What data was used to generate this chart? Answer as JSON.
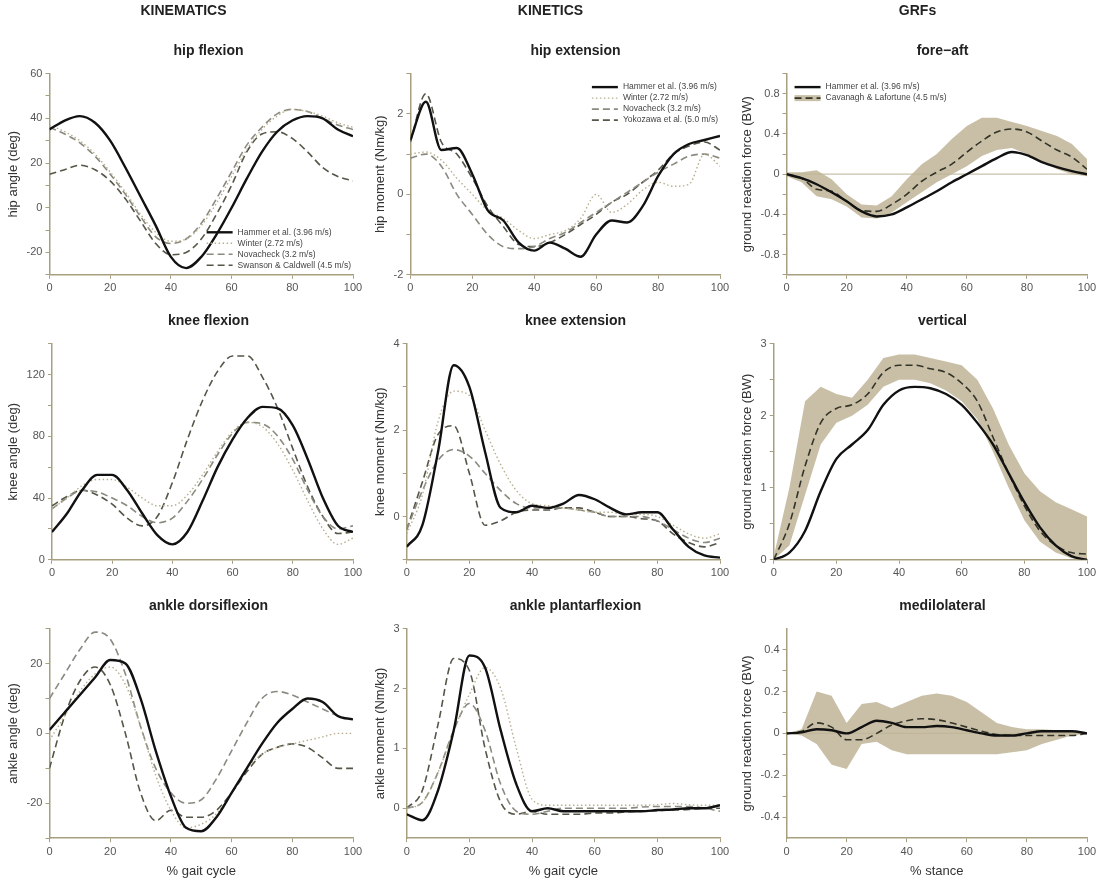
{
  "chart_data": [
    {
      "type": "line",
      "annotations": [
        "KINEMATICS"
      ],
      "title": "hip flexion",
      "ylabel": "hip angle (deg)",
      "legend": "bottom right",
      "x": [
        0,
        5,
        10,
        15,
        20,
        25,
        30,
        35,
        40,
        45,
        50,
        55,
        60,
        65,
        70,
        75,
        80,
        85,
        90,
        95,
        100
      ],
      "xlim": [
        0,
        100
      ],
      "xticks": [
        0,
        20,
        40,
        60,
        80,
        100
      ],
      "ylim": [
        -30,
        60
      ],
      "yticks": [
        {
          "value": -30,
          "label": null
        },
        -20,
        {
          "value": -10,
          "label": null
        },
        0,
        {
          "value": 10,
          "label": null
        },
        20,
        {
          "value": 30,
          "label": null
        },
        40,
        {
          "value": 50,
          "label": null
        },
        60
      ],
      "series": [
        {
          "name": "Hammer et al. (3.96 m/s)",
          "color": "#111111",
          "line_style": "solid",
          "values": [
            35,
            39,
            41,
            38,
            30,
            18,
            5,
            -8,
            -22,
            -27,
            -22,
            -12,
            0,
            13,
            25,
            34,
            39,
            41,
            40,
            35,
            32
          ]
        },
        {
          "name": "Winter (2.72 m/s)",
          "color": "#b8ae8e",
          "line_style": "dotted",
          "values": [
            37,
            34,
            30,
            24,
            16,
            7,
            -3,
            -11,
            -15,
            -14,
            -8,
            2,
            14,
            26,
            35,
            41,
            44,
            43,
            41,
            38,
            36
          ]
        },
        {
          "name": "Novacheck (3.2 m/s)",
          "color": "#8a8a80",
          "line_style": "dashed",
          "values": [
            36,
            33,
            29,
            23,
            15,
            6,
            -4,
            -13,
            -16,
            -14,
            -7,
            4,
            16,
            28,
            36,
            42,
            44,
            43,
            40,
            37,
            35
          ]
        },
        {
          "name": "Swanson & Caldwell (4.5 m/s)",
          "color": "#555548",
          "line_style": "dashed",
          "values": [
            15,
            17,
            19,
            17,
            12,
            4,
            -6,
            -16,
            -21,
            -20,
            -14,
            -3,
            10,
            25,
            33,
            34,
            31,
            25,
            18,
            14,
            12
          ]
        }
      ]
    },
    {
      "type": "line",
      "title": "knee flexion",
      "ylabel": "knee angle (deg)",
      "x": [
        0,
        5,
        10,
        15,
        20,
        25,
        30,
        35,
        40,
        45,
        50,
        55,
        60,
        65,
        70,
        75,
        80,
        85,
        90,
        95,
        100
      ],
      "xlim": [
        0,
        100
      ],
      "xticks": [
        0,
        20,
        40,
        60,
        80,
        100
      ],
      "ylim": [
        0,
        140
      ],
      "yticks": [
        0,
        {
          "value": 20,
          "label": null
        },
        40,
        {
          "value": 60,
          "label": null
        },
        80,
        {
          "value": 100,
          "label": null
        },
        120,
        {
          "value": 140,
          "label": null
        }
      ],
      "series": [
        {
          "color": "#111111",
          "line_style": "solid",
          "values": [
            18,
            30,
            45,
            55,
            55,
            45,
            30,
            16,
            10,
            18,
            38,
            60,
            78,
            92,
            99,
            98,
            87,
            65,
            40,
            22,
            18
          ]
        },
        {
          "color": "#b8ae8e",
          "line_style": "dotted",
          "values": [
            33,
            40,
            48,
            52,
            52,
            47,
            40,
            35,
            35,
            42,
            55,
            70,
            83,
            89,
            86,
            75,
            58,
            38,
            20,
            10,
            14
          ]
        },
        {
          "color": "#8a8a80",
          "line_style": "dashed",
          "values": [
            33,
            40,
            45,
            44,
            40,
            35,
            28,
            24,
            27,
            38,
            52,
            68,
            82,
            89,
            88,
            80,
            65,
            45,
            28,
            20,
            22
          ]
        },
        {
          "color": "#555548",
          "line_style": "dashed",
          "values": [
            35,
            41,
            45,
            42,
            36,
            27,
            22,
            28,
            50,
            78,
            103,
            122,
            132,
            132,
            118,
            98,
            72,
            47,
            28,
            17,
            18
          ]
        }
      ]
    },
    {
      "type": "line",
      "title": "ankle dorsiflexion",
      "xlabel": "% gait cycle",
      "ylabel": "ankle angle (deg)",
      "x": [
        0,
        5,
        10,
        15,
        20,
        25,
        30,
        35,
        40,
        45,
        50,
        55,
        60,
        65,
        70,
        75,
        80,
        85,
        90,
        95,
        100
      ],
      "xlim": [
        0,
        100
      ],
      "xticks": [
        0,
        20,
        40,
        60,
        80,
        100
      ],
      "ylim": [
        -30,
        30
      ],
      "yticks": [
        {
          "value": -30,
          "label": null
        },
        -20,
        {
          "value": -10,
          "label": null
        },
        0,
        {
          "value": 10,
          "label": null
        },
        20,
        {
          "value": 30,
          "label": null
        }
      ],
      "series": [
        {
          "color": "#111111",
          "line_style": "solid",
          "values": [
            1,
            6,
            11,
            16,
            21,
            20,
            10,
            -5,
            -18,
            -27,
            -28,
            -24,
            -17,
            -10,
            -3,
            3,
            7,
            10,
            9,
            5,
            4
          ]
        },
        {
          "color": "#b8ae8e",
          "line_style": "dotted",
          "values": [
            -2,
            5,
            12,
            17,
            19,
            14,
            2,
            -12,
            -22,
            -27,
            -26,
            -23,
            -17,
            -10,
            -6,
            -4,
            -3,
            -2,
            -1,
            0,
            0
          ]
        },
        {
          "color": "#8a8a80",
          "line_style": "dashed",
          "values": [
            10,
            17,
            24,
            29,
            27,
            17,
            2,
            -10,
            -17,
            -20,
            -19,
            -13,
            -5,
            3,
            10,
            12,
            11,
            9,
            7,
            5,
            4
          ]
        },
        {
          "color": "#555548",
          "line_style": "dashed",
          "values": [
            -10,
            5,
            15,
            19,
            14,
            0,
            -17,
            -25,
            -22,
            -24,
            -24,
            -22,
            -17,
            -11,
            -6,
            -4,
            -3,
            -4,
            -7,
            -10,
            -10
          ]
        }
      ]
    },
    {
      "type": "line",
      "annotations": [
        "KINETICS"
      ],
      "title": "hip extension",
      "ylabel": "hip moment (Nm/kg)",
      "legend": "top right",
      "x": [
        0,
        5,
        10,
        15,
        20,
        25,
        30,
        35,
        40,
        45,
        50,
        55,
        60,
        65,
        70,
        75,
        80,
        85,
        90,
        95,
        100
      ],
      "xlim": [
        0,
        100
      ],
      "xticks": [
        0,
        20,
        40,
        60,
        80,
        100
      ],
      "ylim": [
        -2,
        3
      ],
      "yticks": [
        -2,
        {
          "value": -1,
          "label": null
        },
        0,
        {
          "value": 1,
          "label": null
        },
        2,
        {
          "value": 3,
          "label": null
        }
      ],
      "series": [
        {
          "name": "Hammer et al. (3.96 m/s)",
          "color": "#111111",
          "line_style": "solid",
          "values": [
            1.35,
            2.3,
            1.1,
            1.15,
            0.5,
            -0.4,
            -0.65,
            -1.2,
            -1.4,
            -1.2,
            -1.35,
            -1.55,
            -1.0,
            -0.65,
            -0.7,
            -0.3,
            0.45,
            1.0,
            1.25,
            1.35,
            1.45
          ]
        },
        {
          "name": "Winter (2.72 m/s)",
          "color": "#b8ae8e",
          "line_style": "dotted",
          "values": [
            1.0,
            1.05,
            0.85,
            0.4,
            0.0,
            -0.4,
            -0.6,
            -0.9,
            -1.1,
            -1.0,
            -0.9,
            -0.6,
            0.0,
            -0.45,
            -0.25,
            0.1,
            0.3,
            0.2,
            0.25,
            1.0,
            0.7
          ]
        },
        {
          "name": "Novacheck (3.2 m/s)",
          "color": "#8a8a80",
          "line_style": "dashed",
          "values": [
            0.9,
            1.0,
            0.7,
            0.0,
            -0.5,
            -1.0,
            -1.3,
            -1.35,
            -1.3,
            -1.1,
            -0.95,
            -0.7,
            -0.45,
            -0.2,
            0.05,
            0.3,
            0.55,
            0.75,
            0.95,
            1.0,
            0.9
          ]
        },
        {
          "name": "Yokozawa et al. (5.0 m/s)",
          "color": "#555548",
          "line_style": "dashed",
          "values": [
            1.3,
            2.5,
            1.3,
            1.0,
            0.4,
            -0.3,
            -0.8,
            -1.25,
            -1.3,
            -1.2,
            -1.0,
            -0.75,
            -0.5,
            -0.2,
            0.0,
            0.3,
            0.6,
            1.0,
            1.2,
            1.3,
            1.1
          ]
        }
      ]
    },
    {
      "type": "line",
      "title": "knee extension",
      "ylabel": "knee moment (Nm/kg)",
      "x": [
        0,
        5,
        10,
        15,
        20,
        25,
        30,
        35,
        40,
        45,
        50,
        55,
        60,
        65,
        70,
        75,
        80,
        85,
        90,
        95,
        100
      ],
      "xlim": [
        0,
        100
      ],
      "xticks": [
        0,
        20,
        40,
        60,
        80,
        100
      ],
      "ylim": [
        -1,
        4
      ],
      "yticks": [
        {
          "value": -1,
          "label": null
        },
        0,
        {
          "value": 1,
          "label": null
        },
        2,
        {
          "value": 3,
          "label": null
        },
        4
      ],
      "series": [
        {
          "color": "#111111",
          "line_style": "solid",
          "values": [
            -0.7,
            -0.2,
            1.5,
            3.5,
            3.0,
            1.5,
            0.2,
            0.1,
            0.25,
            0.2,
            0.3,
            0.5,
            0.4,
            0.2,
            0.05,
            0.1,
            0.1,
            -0.3,
            -0.7,
            -0.9,
            -0.95
          ]
        },
        {
          "color": "#b8ae8e",
          "line_style": "dotted",
          "values": [
            -0.4,
            0.5,
            2.2,
            2.9,
            2.8,
            2.0,
            1.2,
            0.6,
            0.3,
            0.25,
            0.2,
            0.15,
            0.1,
            0.1,
            0.05,
            0.05,
            0.0,
            -0.2,
            -0.4,
            -0.5,
            -0.4
          ]
        },
        {
          "color": "#8a8a80",
          "line_style": "dashed",
          "values": [
            -0.3,
            0.6,
            1.3,
            1.55,
            1.4,
            1.0,
            0.6,
            0.3,
            0.2,
            0.2,
            0.2,
            0.15,
            0.1,
            0.0,
            0.0,
            0.0,
            -0.1,
            -0.3,
            -0.5,
            -0.6,
            -0.5
          ]
        },
        {
          "color": "#555548",
          "line_style": "dashed",
          "values": [
            -0.3,
            0.8,
            1.9,
            2.1,
            1.0,
            -0.2,
            -0.1,
            0.1,
            0.15,
            0.15,
            0.2,
            0.2,
            0.1,
            0.0,
            0.0,
            -0.05,
            -0.1,
            -0.4,
            -0.6,
            -0.7,
            -0.6
          ]
        }
      ]
    },
    {
      "type": "line",
      "title": "ankle plantarflexion",
      "xlabel": "% gait cycle",
      "ylabel": "ankle moment (Nm/kg)",
      "x": [
        0,
        5,
        10,
        15,
        20,
        25,
        30,
        35,
        40,
        45,
        50,
        55,
        60,
        65,
        70,
        75,
        80,
        85,
        90,
        95,
        100
      ],
      "xlim": [
        0,
        100
      ],
      "xticks": [
        0,
        20,
        40,
        60,
        80,
        100
      ],
      "ylim": [
        -0.5,
        3
      ],
      "yticks": [
        0,
        1,
        2,
        3
      ],
      "series": [
        {
          "color": "#111111",
          "line_style": "solid",
          "values": [
            -0.1,
            -0.2,
            0.3,
            1.3,
            2.55,
            2.35,
            1.3,
            0.4,
            -0.05,
            0.0,
            -0.05,
            -0.05,
            -0.05,
            -0.05,
            -0.05,
            -0.05,
            -0.03,
            -0.02,
            0.0,
            0.0,
            0.05
          ]
        },
        {
          "color": "#b8ae8e",
          "line_style": "dotted",
          "values": [
            0.0,
            0.1,
            0.6,
            1.3,
            1.9,
            2.35,
            2.0,
            1.0,
            0.15,
            0.05,
            0.05,
            0.05,
            0.05,
            0.05,
            0.05,
            0.05,
            0.06,
            0.08,
            0.06,
            0.05,
            0.05
          ]
        },
        {
          "color": "#8a8a80",
          "line_style": "dashed",
          "values": [
            0.0,
            0.1,
            0.6,
            1.3,
            1.75,
            1.3,
            0.4,
            -0.05,
            -0.1,
            -0.05,
            0.0,
            0.0,
            0.0,
            0.0,
            0.0,
            0.02,
            0.03,
            0.03,
            0.03,
            0.0,
            -0.05
          ]
        },
        {
          "color": "#555548",
          "line_style": "dashed",
          "values": [
            0.0,
            0.3,
            1.4,
            2.5,
            2.3,
            1.0,
            0.1,
            -0.1,
            -0.05,
            -0.1,
            -0.1,
            -0.1,
            -0.08,
            -0.08,
            -0.06,
            -0.05,
            -0.04,
            -0.03,
            -0.02,
            0.0,
            0.0
          ]
        }
      ]
    },
    {
      "type": "line",
      "annotations": [
        "GRFs"
      ],
      "title": "fore−aft",
      "ylabel": "ground reaction force (BW)",
      "legend": "top left",
      "x": [
        0,
        5,
        10,
        15,
        20,
        25,
        30,
        35,
        40,
        45,
        50,
        55,
        60,
        65,
        70,
        75,
        80,
        85,
        90,
        95,
        100
      ],
      "xlim": [
        0,
        100
      ],
      "xticks": [
        0,
        20,
        40,
        60,
        80,
        100
      ],
      "ylim": [
        -1,
        1
      ],
      "yticks": [
        {
          "value": -1,
          "label": null
        },
        -0.8,
        {
          "value": -0.6,
          "label": null
        },
        -0.4,
        {
          "value": -0.2,
          "label": null
        },
        0,
        {
          "value": 0.2,
          "label": null
        },
        0.4,
        {
          "value": 0.6,
          "label": null
        },
        0.8,
        {
          "value": 1,
          "label": null
        }
      ],
      "ref_lines": [
        {
          "axis": "y",
          "value": 0,
          "color": "#c8c0a8"
        }
      ],
      "series": [
        {
          "name": "Hammer et al. (3.96 m/s)",
          "color": "#111111",
          "line_style": "solid",
          "values": [
            0,
            -0.04,
            -0.1,
            -0.18,
            -0.27,
            -0.37,
            -0.42,
            -0.4,
            -0.33,
            -0.25,
            -0.17,
            -0.08,
            0.0,
            0.08,
            0.16,
            0.22,
            0.19,
            0.12,
            0.07,
            0.03,
            0.0
          ]
        },
        {
          "name": "Cavanagh & Lafortune (4.5 m/s)",
          "color": "#333328",
          "line_style": "dashed",
          "values": [
            0,
            -0.04,
            -0.15,
            -0.17,
            -0.27,
            -0.36,
            -0.37,
            -0.3,
            -0.2,
            -0.07,
            0.02,
            0.1,
            0.22,
            0.33,
            0.42,
            0.45,
            0.42,
            0.33,
            0.24,
            0.17,
            0.05
          ],
          "lower": [
            -0.02,
            -0.08,
            -0.22,
            -0.25,
            -0.32,
            -0.43,
            -0.44,
            -0.38,
            -0.28,
            -0.18,
            -0.08,
            0.0,
            0.08,
            0.18,
            0.24,
            0.26,
            0.2,
            0.12,
            0.05,
            0.0,
            -0.02
          ],
          "upper": [
            0.02,
            0.02,
            0.04,
            -0.05,
            -0.2,
            -0.3,
            -0.31,
            -0.22,
            -0.05,
            0.1,
            0.2,
            0.35,
            0.48,
            0.56,
            0.56,
            0.52,
            0.48,
            0.43,
            0.38,
            0.3,
            0.15
          ]
        }
      ]
    },
    {
      "type": "line",
      "title": "vertical",
      "ylabel": "ground reaction force (BW)",
      "x": [
        0,
        5,
        10,
        15,
        20,
        25,
        30,
        35,
        40,
        45,
        50,
        55,
        60,
        65,
        70,
        75,
        80,
        85,
        90,
        95,
        100
      ],
      "xlim": [
        0,
        100
      ],
      "xticks": [
        0,
        20,
        40,
        60,
        80,
        100
      ],
      "ylim": [
        0,
        3
      ],
      "yticks": [
        0,
        {
          "value": 0.5,
          "label": null
        },
        1,
        {
          "value": 1.5,
          "label": null
        },
        2,
        {
          "value": 2.5,
          "label": null
        },
        3
      ],
      "series": [
        {
          "color": "#111111",
          "line_style": "solid",
          "values": [
            0,
            0.1,
            0.4,
            0.95,
            1.4,
            1.6,
            1.8,
            2.15,
            2.35,
            2.4,
            2.38,
            2.3,
            2.15,
            1.9,
            1.6,
            1.2,
            0.8,
            0.45,
            0.2,
            0.05,
            0.0
          ]
        },
        {
          "color": "#333328",
          "line_style": "dashed",
          "values": [
            0,
            0.5,
            1.3,
            1.9,
            2.1,
            2.15,
            2.3,
            2.6,
            2.7,
            2.7,
            2.65,
            2.6,
            2.45,
            2.2,
            1.7,
            1.2,
            0.75,
            0.4,
            0.2,
            0.1,
            0.08
          ],
          "lower": [
            0,
            0.2,
            0.9,
            1.6,
            1.9,
            2.0,
            2.15,
            2.4,
            2.5,
            2.5,
            2.45,
            2.35,
            2.2,
            1.95,
            1.5,
            1.0,
            0.55,
            0.25,
            0.1,
            0.02,
            0.0
          ],
          "upper": [
            0.05,
            1.0,
            2.2,
            2.4,
            2.3,
            2.25,
            2.5,
            2.8,
            2.85,
            2.85,
            2.8,
            2.75,
            2.7,
            2.5,
            2.1,
            1.6,
            1.2,
            0.95,
            0.8,
            0.7,
            0.6
          ]
        }
      ]
    },
    {
      "type": "line",
      "title": "medilolateral",
      "xlabel": "% stance",
      "ylabel": "ground reaction force (BW)",
      "x": [
        0,
        5,
        10,
        15,
        20,
        25,
        30,
        35,
        40,
        45,
        50,
        55,
        60,
        65,
        70,
        75,
        80,
        85,
        90,
        95,
        100
      ],
      "xlim": [
        0,
        100
      ],
      "xticks": [
        0,
        20,
        40,
        60,
        80,
        100
      ],
      "ylim": [
        -0.5,
        0.5
      ],
      "yticks": [
        -0.4,
        {
          "value": -0.3,
          "label": null
        },
        -0.2,
        {
          "value": -0.1,
          "label": null
        },
        0,
        {
          "value": 0.1,
          "label": null
        },
        0.2,
        {
          "value": 0.3,
          "label": null
        },
        0.4
      ],
      "ref_lines": [
        {
          "axis": "y",
          "value": 0,
          "color": "#c8c0a8"
        }
      ],
      "series": [
        {
          "color": "#111111",
          "line_style": "solid",
          "values": [
            0,
            0.005,
            0.02,
            0.015,
            0.0,
            0.03,
            0.06,
            0.05,
            0.03,
            0.03,
            0.035,
            0.03,
            0.015,
            0.0,
            -0.01,
            -0.01,
            0.0,
            0.01,
            0.01,
            0.01,
            0.0
          ]
        },
        {
          "color": "#333328",
          "line_style": "dashed",
          "values": [
            0,
            0.01,
            0.05,
            0.03,
            -0.03,
            -0.03,
            0.0,
            0.04,
            0.06,
            0.07,
            0.065,
            0.05,
            0.03,
            0.01,
            -0.005,
            -0.01,
            -0.01,
            -0.01,
            -0.01,
            -0.01,
            0.0
          ],
          "lower": [
            0,
            -0.01,
            -0.05,
            -0.15,
            -0.17,
            -0.05,
            -0.04,
            -0.08,
            -0.1,
            -0.1,
            -0.1,
            -0.1,
            -0.1,
            -0.1,
            -0.1,
            -0.09,
            -0.08,
            -0.05,
            -0.03,
            -0.01,
            0.0
          ],
          "upper": [
            0,
            0.02,
            0.2,
            0.18,
            0.05,
            0.14,
            0.15,
            0.12,
            0.15,
            0.18,
            0.19,
            0.18,
            0.15,
            0.1,
            0.05,
            0.03,
            0.02,
            0.02,
            0.015,
            0.01,
            0.0
          ]
        }
      ]
    }
  ]
}
